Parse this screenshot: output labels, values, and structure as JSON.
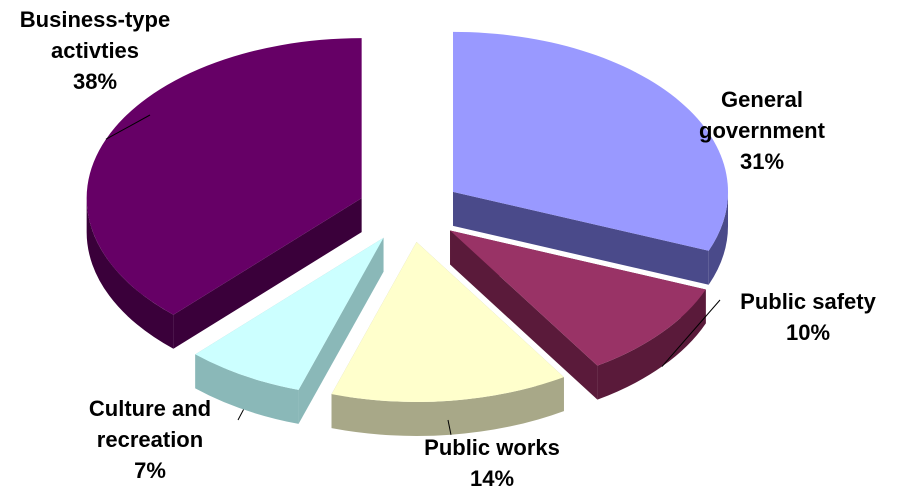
{
  "chart_data": {
    "type": "pie",
    "title": "",
    "slices": [
      {
        "name": "General government",
        "value": 31,
        "label_lines": [
          "General",
          "government",
          "31%"
        ],
        "color": "#9999FF",
        "side_color": "#4A4A8A"
      },
      {
        "name": "Public safety",
        "value": 10,
        "label_lines": [
          "Public safety",
          "10%"
        ],
        "color": "#993366",
        "side_color": "#5A1A3A"
      },
      {
        "name": "Public works",
        "value": 14,
        "label_lines": [
          "Public works",
          "14%"
        ],
        "color": "#FFFFCC",
        "side_color": "#A8A888"
      },
      {
        "name": "Culture and recreation",
        "value": 7,
        "label_lines": [
          "Culture and",
          "recreation",
          "7%"
        ],
        "color": "#CCFFFF",
        "side_color": "#8AB8B8"
      },
      {
        "name": "Business-type activties",
        "value": 38,
        "label_lines": [
          "Business-type",
          "activties",
          "38%"
        ],
        "color": "#660066",
        "side_color": "#3A003A"
      }
    ]
  }
}
